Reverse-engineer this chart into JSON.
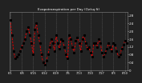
{
  "title": "Evapotranspiration per Day (Oz/sq ft)",
  "line_color": "#dd0000",
  "marker_color": "#000000",
  "bg_color": "#222222",
  "plot_bg_color": "#222222",
  "grid_color": "#888888",
  "title_color": "#ffffff",
  "tick_color": "#ffffff",
  "ylim": [
    0.0,
    0.3
  ],
  "yticks": [
    0.0,
    0.04,
    0.08,
    0.12,
    0.16,
    0.2,
    0.24,
    0.28
  ],
  "ytick_labels": [
    "0",
    ".04",
    ".08",
    ".12",
    ".16",
    ".20",
    ".24",
    ".28"
  ],
  "values": [
    0.26,
    0.18,
    0.1,
    0.06,
    0.07,
    0.08,
    0.1,
    0.12,
    0.14,
    0.16,
    0.2,
    0.22,
    0.18,
    0.14,
    0.08,
    0.21,
    0.24,
    0.18,
    0.14,
    0.08,
    0.04,
    0.03,
    0.05,
    0.08,
    0.12,
    0.16,
    0.14,
    0.1,
    0.18,
    0.14,
    0.11,
    0.16,
    0.15,
    0.12,
    0.08,
    0.06,
    0.18,
    0.16,
    0.12,
    0.09,
    0.15,
    0.17,
    0.14,
    0.1,
    0.16,
    0.18,
    0.14,
    0.11,
    0.12,
    0.09,
    0.07,
    0.14,
    0.14,
    0.12,
    0.16,
    0.14,
    0.09,
    0.07,
    0.09,
    0.11,
    0.14,
    0.12,
    0.1,
    0.14,
    0.13,
    0.1,
    0.07,
    0.08,
    0.11,
    0.13,
    0.15,
    0.14
  ],
  "xlabel_step": 7,
  "x_labels": [
    "6/1",
    "6/8",
    "6/15",
    "6/22",
    "6/29",
    "7/6",
    "7/13",
    "7/20",
    "7/27",
    "8/3",
    "8/10",
    "8/17",
    "8/24"
  ]
}
